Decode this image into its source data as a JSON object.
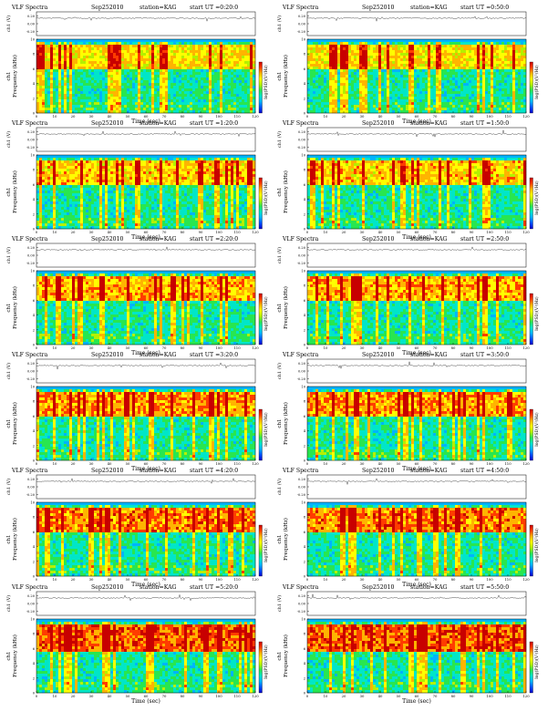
{
  "common": {
    "title_label": "VLF Spectra",
    "date": "Sep252010",
    "station": "station=KAG",
    "x_axis_label": "Time (sec)",
    "y_axis_label_channel": "ch1",
    "y_axis_label_frequency": "Frequency (kHz)",
    "waveform_axis_label": "ch1 (V)",
    "colorbar_label": "log(PSD)(V²/Hz)",
    "x_ticks": [
      "0",
      "10",
      "20",
      "30",
      "40",
      "50",
      "60",
      "70",
      "80",
      "90",
      "100",
      "110",
      "120"
    ],
    "freq_ticks": [
      "0",
      "2",
      "4",
      "6",
      "8",
      "10"
    ],
    "wave_ticks": [
      "0.20",
      "0.00",
      "-0.20"
    ]
  },
  "colormap": [
    "#0000c8",
    "#0050ff",
    "#00b4ff",
    "#00e6c8",
    "#28e650",
    "#b4f000",
    "#ffff00",
    "#ffb400",
    "#ff3c00",
    "#c80000"
  ],
  "panels": [
    {
      "start_label": "start UT =0:20:0"
    },
    {
      "start_label": "start UT =0:50:0"
    },
    {
      "start_label": "start UT =1:20:0"
    },
    {
      "start_label": "start UT =1:50:0"
    },
    {
      "start_label": "start UT =2:20:0"
    },
    {
      "start_label": "start UT =2:50:0"
    },
    {
      "start_label": "start UT =3:20:0"
    },
    {
      "start_label": "start UT =3:50:0"
    },
    {
      "start_label": "start UT =4:20:0"
    },
    {
      "start_label": "start UT =4:50:0"
    },
    {
      "start_label": "start UT =5:20:0"
    },
    {
      "start_label": "start UT =5:50:0"
    }
  ],
  "chart_data": {
    "type": "heatmap",
    "title": "VLF Spectra Sep252010 station=KAG",
    "xlabel": "Time (sec)",
    "ylabel": "Frequency (kHz)",
    "xlim": [
      0,
      120
    ],
    "ylim": [
      0,
      10
    ],
    "wave_ylim": [
      -0.3,
      0.3
    ],
    "panel_count": 12
  }
}
